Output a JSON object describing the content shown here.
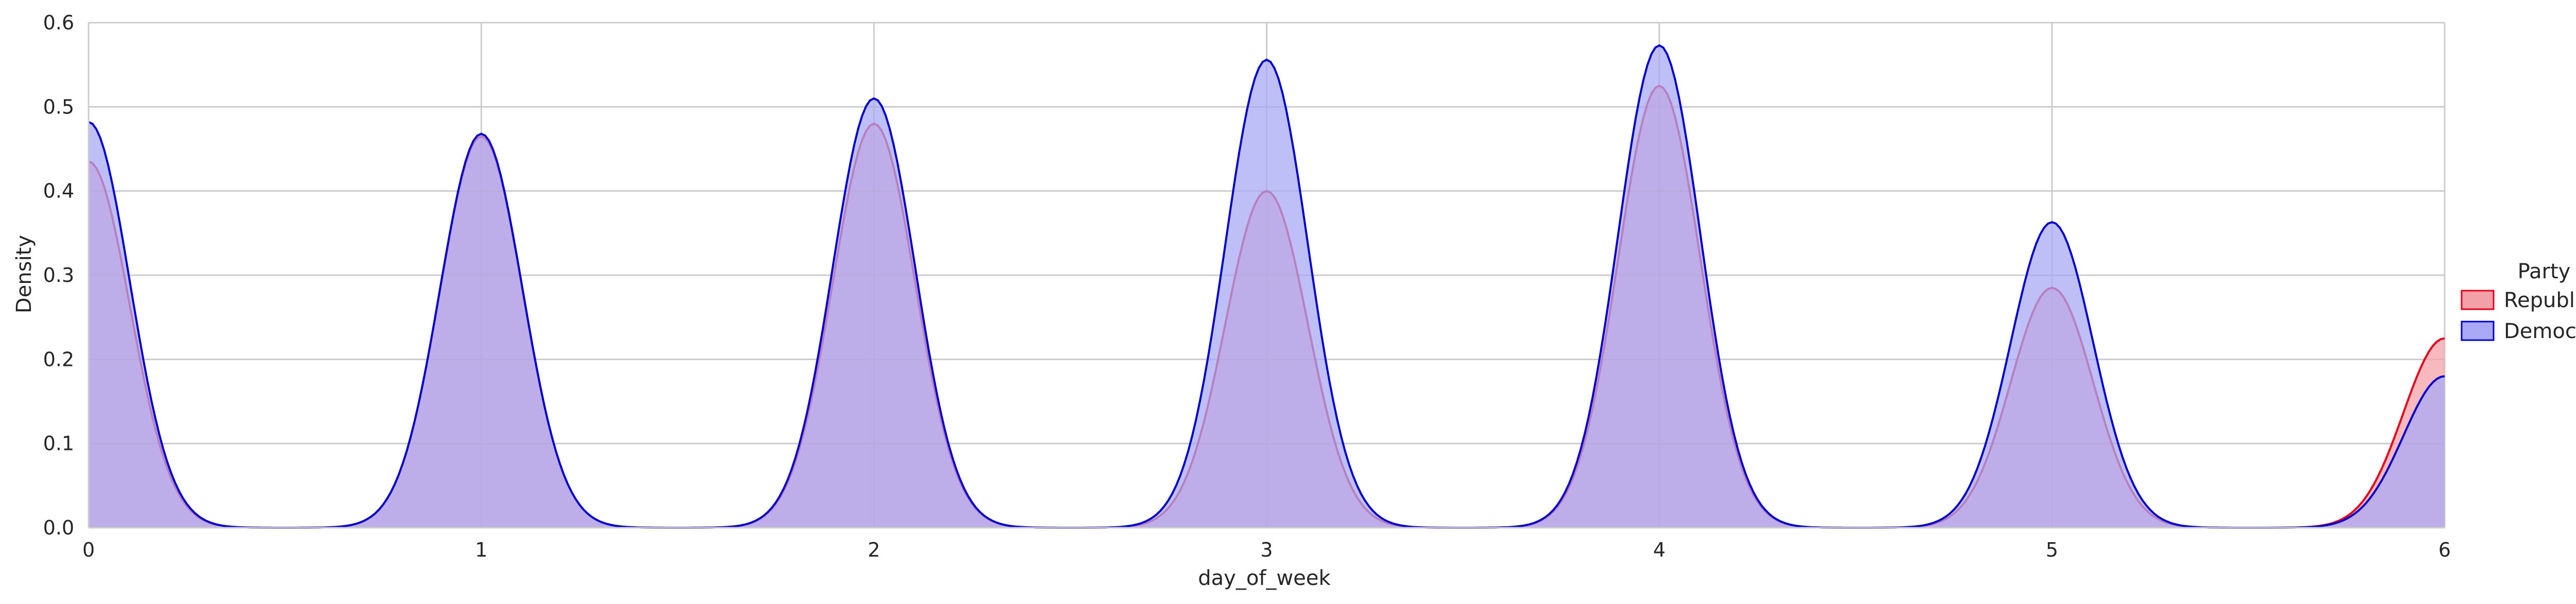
{
  "chart_data": {
    "type": "area",
    "title": "",
    "xlabel": "day_of_week",
    "ylabel": "Density",
    "xlim": [
      0,
      6
    ],
    "ylim": [
      0,
      0.6
    ],
    "x_ticks": [
      "0",
      "1",
      "2",
      "3",
      "4",
      "5",
      "6"
    ],
    "y_ticks": [
      "0.0",
      "0.1",
      "0.2",
      "0.3",
      "0.4",
      "0.5",
      "0.6"
    ],
    "grid": true,
    "legend": {
      "title": "Party",
      "placement": "right"
    },
    "kernel_sigma": 0.105,
    "series": [
      {
        "name": "Republican",
        "color": "#e3001b",
        "fill": "#f4a0a8",
        "peak_x": [
          0,
          1,
          2,
          3,
          4,
          5,
          6
        ],
        "peak_y": [
          0.435,
          0.465,
          0.48,
          0.4,
          0.525,
          0.285,
          0.225
        ]
      },
      {
        "name": "Democrat",
        "color": "#0000cc",
        "fill": "#a9a9f5",
        "peak_x": [
          0,
          1,
          2,
          3,
          4,
          5,
          6
        ],
        "peak_y": [
          0.482,
          0.468,
          0.51,
          0.556,
          0.573,
          0.363,
          0.18
        ]
      }
    ]
  }
}
